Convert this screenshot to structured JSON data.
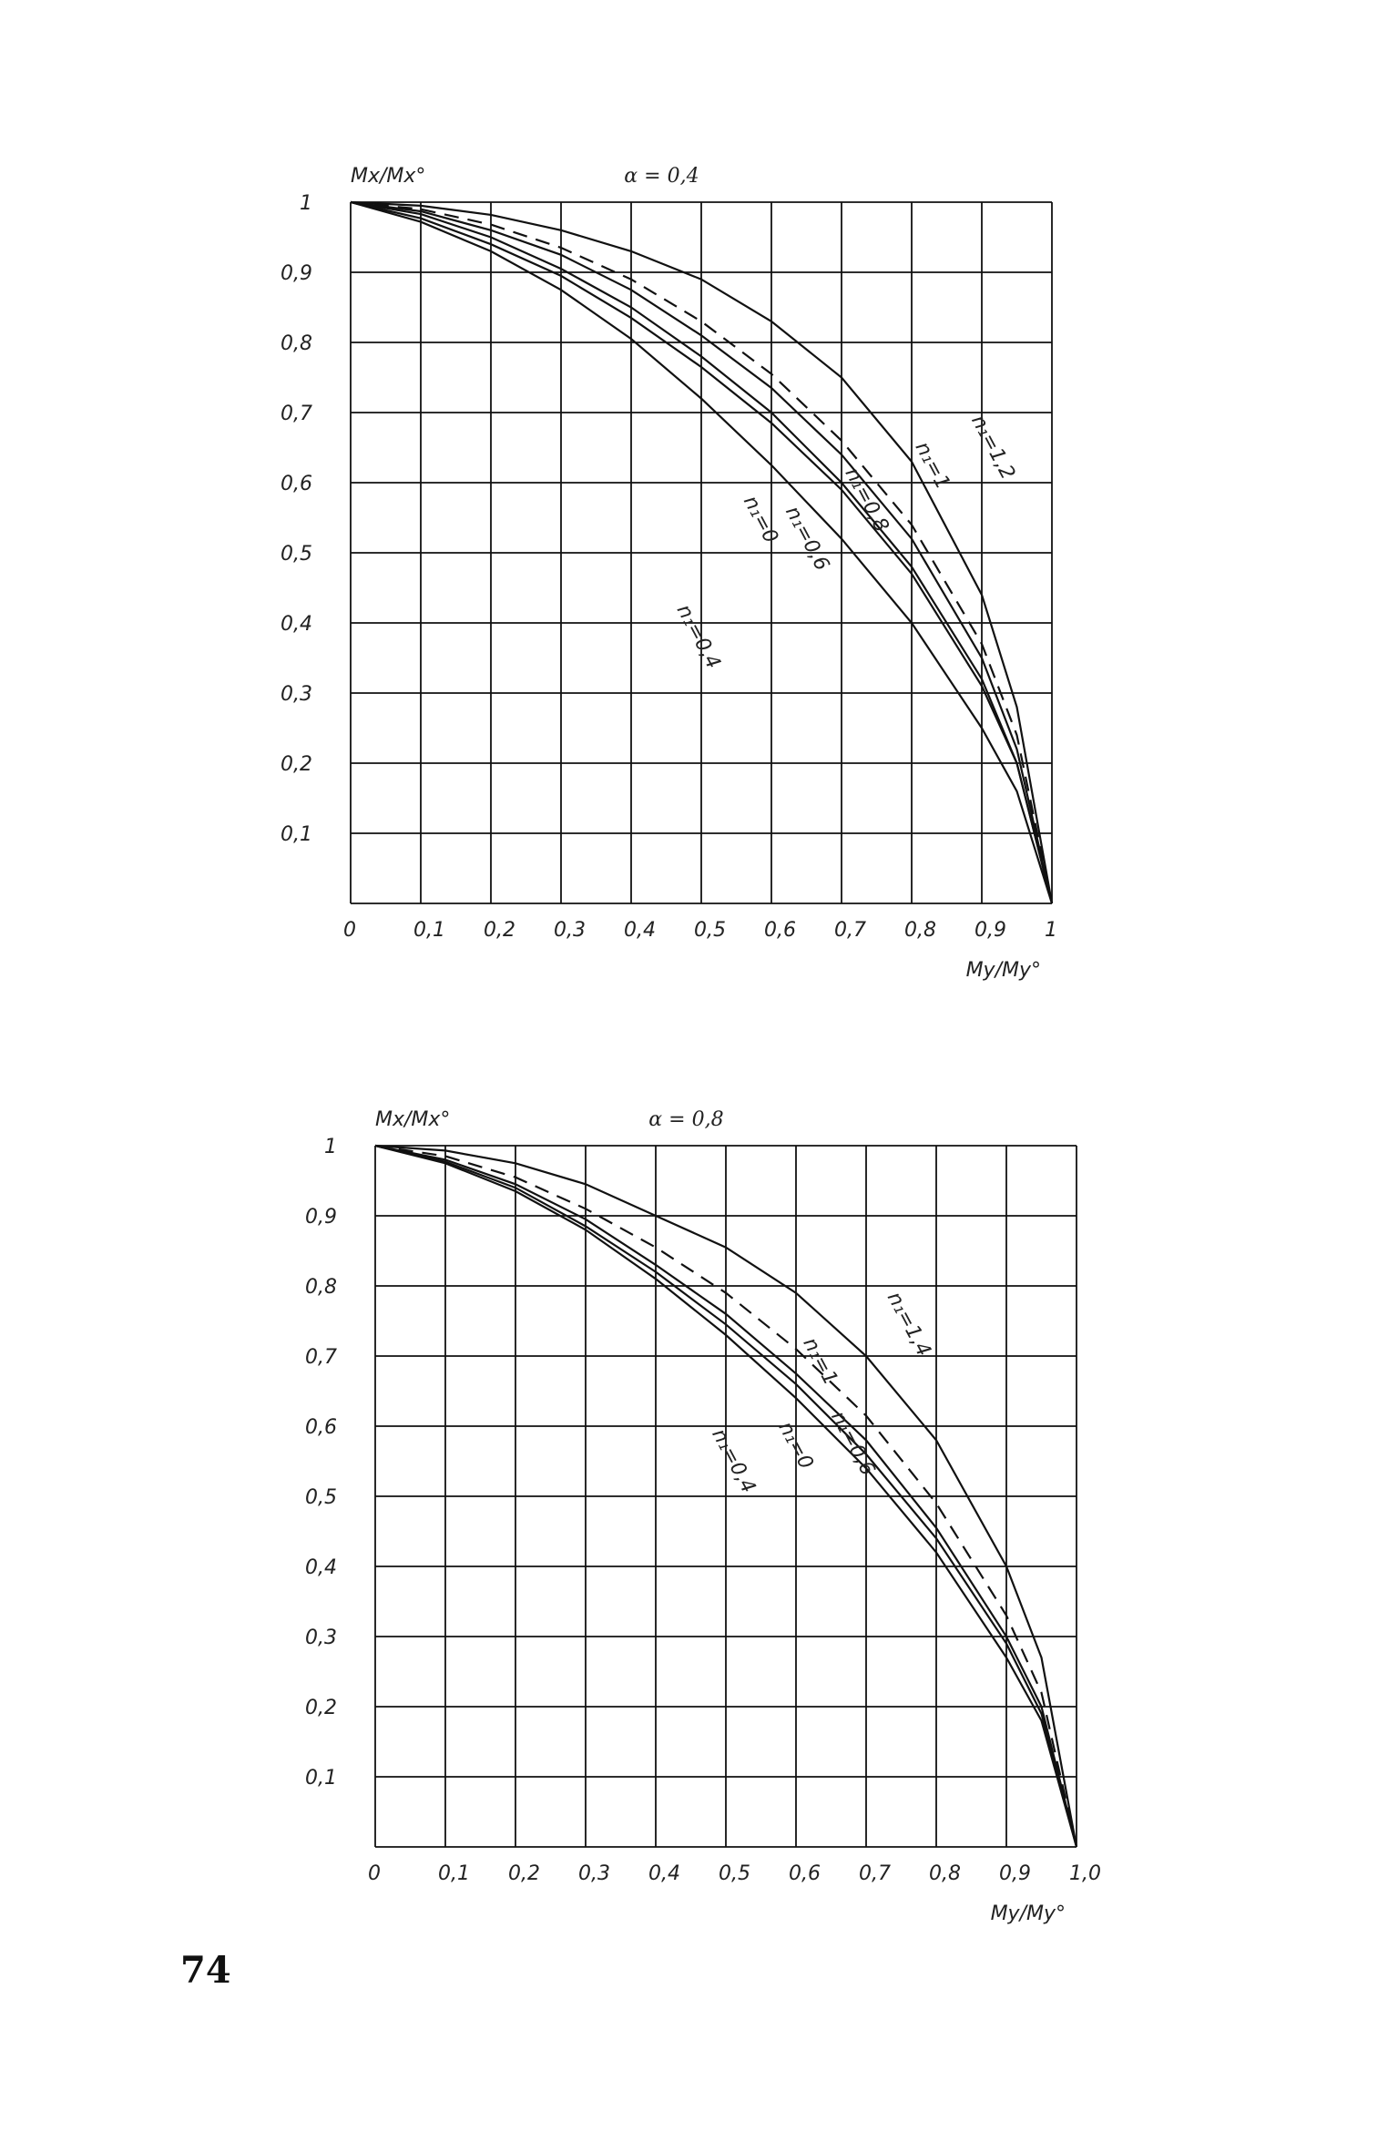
{
  "page_number": "74",
  "chart_data": [
    {
      "type": "line",
      "title": "α = 0,4",
      "ylabel": "Mx/Mx°",
      "xlabel": "My/My°",
      "xlim": [
        0,
        1
      ],
      "ylim": [
        0,
        1
      ],
      "x_ticks": [
        "0",
        "0,1",
        "0,2",
        "0,3",
        "0,4",
        "0,5",
        "0,6",
        "0,7",
        "0,8",
        "0,9",
        "1"
      ],
      "y_ticks": [
        "0,1",
        "0,2",
        "0,3",
        "0,4",
        "0,5",
        "0,6",
        "0,7",
        "0,8",
        "0,9",
        "1"
      ],
      "grid": true,
      "series": [
        {
          "name": "n₁=1,2",
          "dashed": false,
          "x": [
            0,
            0.1,
            0.2,
            0.3,
            0.4,
            0.5,
            0.6,
            0.7,
            0.8,
            0.9,
            0.95,
            1.0
          ],
          "y": [
            1.0,
            0.995,
            0.982,
            0.96,
            0.93,
            0.89,
            0.83,
            0.75,
            0.63,
            0.44,
            0.28,
            0.0
          ]
        },
        {
          "name": "n₁=1",
          "dashed": true,
          "x": [
            0,
            0.1,
            0.2,
            0.3,
            0.4,
            0.5,
            0.6,
            0.7,
            0.8,
            0.9,
            0.95,
            1.0
          ],
          "y": [
            1.0,
            0.99,
            0.968,
            0.935,
            0.89,
            0.83,
            0.755,
            0.66,
            0.54,
            0.37,
            0.24,
            0.0
          ]
        },
        {
          "name": "n₁=0,8",
          "dashed": false,
          "x": [
            0,
            0.1,
            0.2,
            0.3,
            0.4,
            0.5,
            0.6,
            0.7,
            0.8,
            0.9,
            0.95,
            1.0
          ],
          "y": [
            1.0,
            0.987,
            0.96,
            0.925,
            0.875,
            0.81,
            0.735,
            0.64,
            0.52,
            0.35,
            0.22,
            0.0
          ]
        },
        {
          "name": "n₁=0,6",
          "dashed": false,
          "x": [
            0,
            0.1,
            0.2,
            0.3,
            0.4,
            0.5,
            0.6,
            0.7,
            0.8,
            0.9,
            0.95,
            1.0
          ],
          "y": [
            1.0,
            0.983,
            0.95,
            0.905,
            0.85,
            0.78,
            0.7,
            0.6,
            0.48,
            0.32,
            0.2,
            0.0
          ]
        },
        {
          "name": "n₁=0",
          "dashed": false,
          "x": [
            0,
            0.1,
            0.2,
            0.3,
            0.4,
            0.5,
            0.6,
            0.7,
            0.8,
            0.9,
            0.95,
            1.0
          ],
          "y": [
            1.0,
            0.977,
            0.94,
            0.895,
            0.835,
            0.765,
            0.685,
            0.59,
            0.47,
            0.31,
            0.2,
            0.0
          ]
        },
        {
          "name": "n₁=0,4",
          "dashed": false,
          "x": [
            0,
            0.1,
            0.2,
            0.3,
            0.4,
            0.5,
            0.6,
            0.7,
            0.8,
            0.9,
            0.95,
            1.0
          ],
          "y": [
            1.0,
            0.972,
            0.93,
            0.875,
            0.805,
            0.72,
            0.625,
            0.52,
            0.4,
            0.25,
            0.16,
            0.0
          ]
        }
      ]
    },
    {
      "type": "line",
      "title": "α = 0,8",
      "ylabel": "Mx/Mx°",
      "xlabel": "My/My°",
      "xlim": [
        0,
        1
      ],
      "ylim": [
        0,
        1
      ],
      "x_ticks": [
        "0",
        "0,1",
        "0,2",
        "0,3",
        "0,4",
        "0,5",
        "0,6",
        "0,7",
        "0,8",
        "0,9",
        "1,0"
      ],
      "y_ticks": [
        "0,1",
        "0,2",
        "0,3",
        "0,4",
        "0,5",
        "0,6",
        "0,7",
        "0,8",
        "0,9",
        "1"
      ],
      "grid": true,
      "series": [
        {
          "name": "n₁=1,4",
          "dashed": false,
          "x": [
            0,
            0.1,
            0.2,
            0.3,
            0.4,
            0.5,
            0.6,
            0.7,
            0.8,
            0.9,
            0.95,
            1.0
          ],
          "y": [
            1.0,
            0.993,
            0.975,
            0.945,
            0.9,
            0.855,
            0.79,
            0.7,
            0.58,
            0.4,
            0.27,
            0.0
          ]
        },
        {
          "name": "n₁=1",
          "dashed": true,
          "x": [
            0,
            0.1,
            0.2,
            0.3,
            0.4,
            0.5,
            0.6,
            0.7,
            0.8,
            0.9,
            0.95,
            1.0
          ],
          "y": [
            1.0,
            0.985,
            0.955,
            0.91,
            0.855,
            0.79,
            0.71,
            0.615,
            0.49,
            0.33,
            0.22,
            0.0
          ]
        },
        {
          "name": "n₁=0,6",
          "dashed": false,
          "x": [
            0,
            0.1,
            0.2,
            0.3,
            0.4,
            0.5,
            0.6,
            0.7,
            0.8,
            0.9,
            0.95,
            1.0
          ],
          "y": [
            1.0,
            0.98,
            0.945,
            0.895,
            0.83,
            0.76,
            0.675,
            0.58,
            0.455,
            0.3,
            0.2,
            0.0
          ]
        },
        {
          "name": "n₁=0",
          "dashed": false,
          "x": [
            0,
            0.1,
            0.2,
            0.3,
            0.4,
            0.5,
            0.6,
            0.7,
            0.8,
            0.9,
            0.95,
            1.0
          ],
          "y": [
            1.0,
            0.977,
            0.94,
            0.885,
            0.82,
            0.745,
            0.66,
            0.56,
            0.44,
            0.29,
            0.19,
            0.0
          ]
        },
        {
          "name": "n₁=0,4",
          "dashed": false,
          "x": [
            0,
            0.1,
            0.2,
            0.3,
            0.4,
            0.5,
            0.6,
            0.7,
            0.8,
            0.9,
            0.95,
            1.0
          ],
          "y": [
            1.0,
            0.975,
            0.935,
            0.88,
            0.81,
            0.73,
            0.64,
            0.54,
            0.42,
            0.27,
            0.18,
            0.0
          ]
        }
      ]
    }
  ]
}
